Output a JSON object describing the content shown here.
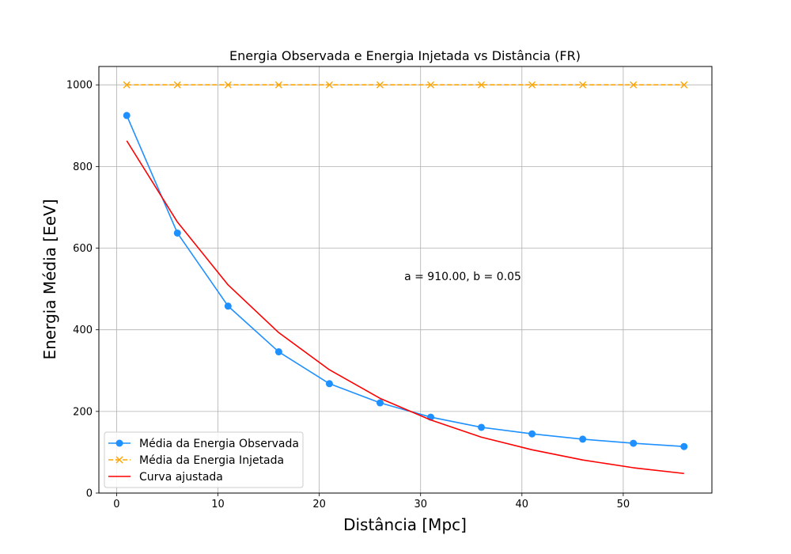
{
  "chart_data": {
    "type": "line",
    "title": "Energia Observada e Energia Injetada vs Distância (FR)",
    "xlabel": "Distância [Mpc]",
    "ylabel": "Energia Média [EeV]",
    "xlim": [
      -1.75,
      58.75
    ],
    "ylim": [
      0,
      1045
    ],
    "xticks": [
      0,
      10,
      20,
      30,
      40,
      50
    ],
    "yticks": [
      0,
      200,
      400,
      600,
      800,
      1000
    ],
    "grid": true,
    "legend_position": "lower-left",
    "annotation": "a = 910.00, b = 0.05",
    "x": [
      1,
      6,
      11,
      16,
      21,
      26,
      31,
      36,
      41,
      46,
      51,
      56
    ],
    "series": [
      {
        "name": "Média da Energia Observada",
        "color": "#1e90ff",
        "style": "solid",
        "marker": "circle",
        "values": [
          925,
          637,
          458,
          346,
          268,
          221,
          186,
          161,
          145,
          132,
          122,
          114
        ]
      },
      {
        "name": "Média da Energia Injetada",
        "color": "#ffa500",
        "style": "dashed",
        "marker": "x",
        "values": [
          1000,
          1000,
          1000,
          1000,
          1000,
          1000,
          1000,
          1000,
          1000,
          1000,
          1000,
          1000
        ]
      },
      {
        "name": "Curva ajustada",
        "color": "#ff0000",
        "style": "solid",
        "marker": "none",
        "values": [
          863,
          664,
          510,
          393,
          302,
          232,
          179,
          137,
          106,
          81,
          62,
          48
        ]
      }
    ]
  }
}
